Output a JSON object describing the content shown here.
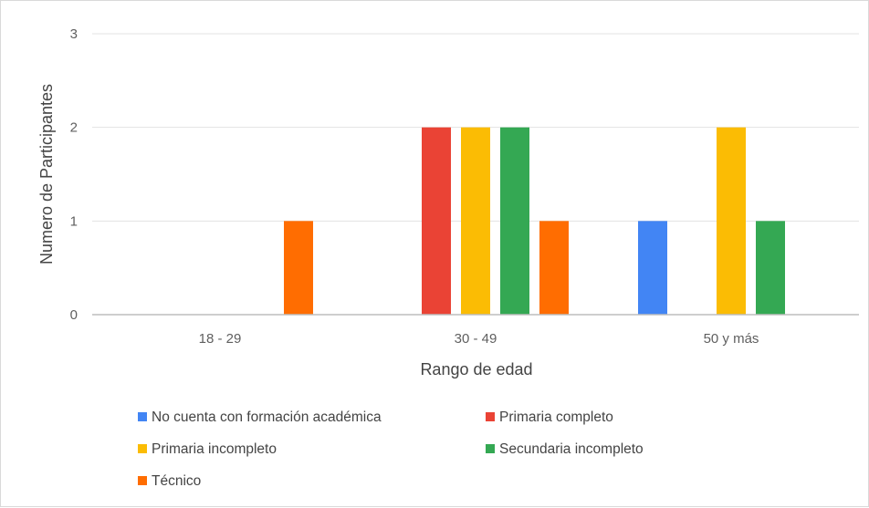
{
  "chart_data": {
    "type": "bar",
    "categories": [
      "18 - 29",
      "30 - 49",
      "50 y más"
    ],
    "series": [
      {
        "name": "No cuenta con formación académica",
        "color": "#4285f4",
        "values": [
          0,
          0,
          1
        ]
      },
      {
        "name": "Primaria completo",
        "color": "#ea4335",
        "values": [
          0,
          2,
          0
        ]
      },
      {
        "name": "Primaria incompleto",
        "color": "#fbbc04",
        "values": [
          0,
          2,
          2
        ]
      },
      {
        "name": "Secundaria incompleto",
        "color": "#34a853",
        "values": [
          0,
          2,
          1
        ]
      },
      {
        "name": "Técnico",
        "color": "#ff6d01",
        "values": [
          1,
          1,
          0
        ]
      }
    ],
    "title": "",
    "xlabel": "Rango de edad",
    "ylabel": "Numero de Participantes",
    "ylim": [
      0,
      3
    ],
    "yticks": [
      "0",
      "1",
      "2",
      "3"
    ],
    "grid": true,
    "legend_position": "bottom"
  }
}
